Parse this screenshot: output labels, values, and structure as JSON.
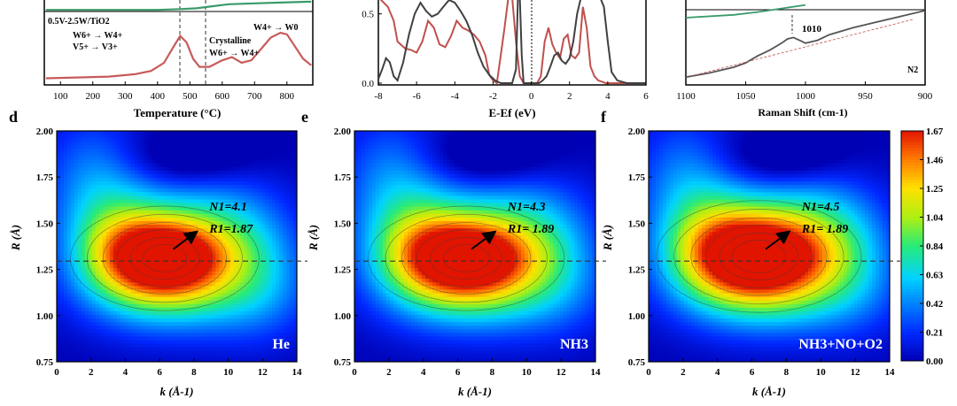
{
  "panels": {
    "d": "d",
    "e": "e",
    "f": "f"
  },
  "chart_data": [
    {
      "id": "tpr-cropped",
      "type": "line",
      "xlabel": "Temperature (°C)",
      "xlim": [
        50,
        880
      ],
      "xticks": [
        100,
        200,
        300,
        400,
        500,
        600,
        700,
        800
      ],
      "sample_label": "0.5V-2.5W/TiO2",
      "annotations": {
        "w6_w4": "W6+ → W4+",
        "v5_v3": "V5+ → V3+",
        "crystalline": "Crystalline",
        "w6_w4_b": "W6+ → W4+",
        "w4_w0": "W4+ → W0"
      },
      "series": [
        {
          "color": "#c85a5a",
          "x": [
            55,
            150,
            250,
            330,
            380,
            420,
            450,
            470,
            490,
            510,
            530,
            560,
            600,
            630,
            660,
            690,
            720,
            750,
            780,
            800,
            820,
            850,
            875
          ],
          "y": [
            0.06,
            0.07,
            0.08,
            0.11,
            0.15,
            0.25,
            0.45,
            0.58,
            0.5,
            0.3,
            0.2,
            0.2,
            0.28,
            0.32,
            0.25,
            0.28,
            0.42,
            0.56,
            0.62,
            0.6,
            0.48,
            0.3,
            0.22
          ]
        },
        {
          "color": "#3a9a6a",
          "x": [
            55,
            400,
            470,
            520,
            560,
            620,
            700,
            780,
            860,
            875
          ],
          "y": [
            0.9,
            0.9,
            0.91,
            0.92,
            0.94,
            0.97,
            0.98,
            0.99,
            1.0,
            1.0
          ]
        }
      ]
    },
    {
      "id": "dos-cropped",
      "type": "line",
      "xlabel": "E-Ef (eV)",
      "xlim": [
        -8,
        6
      ],
      "ylim": [
        0,
        0.6
      ],
      "xticks": [
        -8,
        -6,
        -4,
        -2,
        0,
        2,
        4,
        6
      ],
      "yticks": [
        0.0,
        0.5
      ],
      "series": [
        {
          "color": "#c0504d",
          "x": [
            -8,
            -7.5,
            -7.2,
            -7.0,
            -6.6,
            -6.3,
            -6.0,
            -5.7,
            -5.4,
            -5.1,
            -4.8,
            -4.5,
            -4.2,
            -3.9,
            -3.6,
            -3.3,
            -3.0,
            -2.7,
            -2.4,
            -2.2,
            -2.0,
            -1.8,
            -1.6,
            -1.4,
            -1.2,
            -1.0,
            -0.8,
            -0.6,
            -0.4,
            -0.2,
            0.0,
            0.1,
            0.3,
            0.5,
            0.7,
            0.9,
            1.1,
            1.3,
            1.5,
            1.7,
            1.9,
            2.1,
            2.3,
            2.5,
            2.7,
            2.9,
            3.1,
            3.3,
            3.5,
            3.7,
            3.9,
            4.1,
            4.5,
            5,
            6
          ],
          "y": [
            0.62,
            0.55,
            0.45,
            0.3,
            0.25,
            0.24,
            0.22,
            0.3,
            0.45,
            0.4,
            0.28,
            0.26,
            0.34,
            0.45,
            0.4,
            0.38,
            0.35,
            0.3,
            0.2,
            0.06,
            0.02,
            0.0,
            0.2,
            0.4,
            0.62,
            0.62,
            0.3,
            0.05,
            0.0,
            0.0,
            0.0,
            0.0,
            0.0,
            0.05,
            0.3,
            0.4,
            0.28,
            0.22,
            0.18,
            0.32,
            0.35,
            0.2,
            0.18,
            0.22,
            0.55,
            0.4,
            0.12,
            0.05,
            0.02,
            0.01,
            0.0,
            0.0,
            0.0,
            0.0,
            0.0
          ]
        },
        {
          "color": "#404040",
          "x": [
            -8,
            -7.8,
            -7.6,
            -7.4,
            -7.2,
            -7.0,
            -6.7,
            -6.4,
            -6.1,
            -5.8,
            -5.5,
            -5.2,
            -4.9,
            -4.6,
            -4.3,
            -4.0,
            -3.7,
            -3.4,
            -3.1,
            -2.8,
            -2.5,
            -2.2,
            -1.9,
            -1.6,
            -1.3,
            -1.0,
            -0.8,
            -0.7,
            -0.6,
            -0.5,
            -0.4,
            0.0,
            0.4,
            0.6,
            0.8,
            1.0,
            1.2,
            1.4,
            1.6,
            1.8,
            2.0,
            2.2,
            2.4,
            2.6,
            2.8,
            3.0,
            3.2,
            3.4,
            3.6,
            3.8,
            4.0,
            4.2,
            4.5,
            5,
            6
          ],
          "y": [
            0.03,
            0.1,
            0.18,
            0.15,
            0.05,
            0.02,
            0.15,
            0.35,
            0.5,
            0.58,
            0.52,
            0.48,
            0.5,
            0.55,
            0.6,
            0.58,
            0.52,
            0.45,
            0.35,
            0.22,
            0.12,
            0.06,
            0.02,
            0.0,
            0.0,
            0.0,
            0.1,
            0.62,
            0.62,
            0.2,
            0.0,
            0.0,
            0.0,
            0.02,
            0.05,
            0.12,
            0.2,
            0.22,
            0.16,
            0.14,
            0.18,
            0.3,
            0.5,
            0.62,
            0.62,
            0.62,
            0.62,
            0.62,
            0.62,
            0.55,
            0.3,
            0.08,
            0.02,
            0.0,
            0.0
          ]
        }
      ]
    },
    {
      "id": "raman-cropped",
      "type": "line",
      "xlabel": "Raman Shift (cm-1)",
      "xlim": [
        1100,
        900
      ],
      "xticks": [
        1100,
        1050,
        1000,
        950,
        900
      ],
      "peak_label": "1010",
      "condition_label": "N2",
      "series": [
        {
          "color": "#555555",
          "x": [
            1100,
            1080,
            1060,
            1050,
            1040,
            1030,
            1020,
            1015,
            1010,
            1005,
            1000,
            990,
            980,
            960,
            940,
            920,
            900
          ],
          "y": [
            0.06,
            0.12,
            0.2,
            0.26,
            0.36,
            0.44,
            0.54,
            0.6,
            0.62,
            0.58,
            0.54,
            0.58,
            0.66,
            0.76,
            0.84,
            0.92,
            1.0
          ]
        },
        {
          "color": "#3a9a6a",
          "x": [
            1100,
            1060,
            1040,
            1020,
            1000
          ],
          "y": [
            0.9,
            0.94,
            0.98,
            1.03,
            1.08
          ]
        }
      ]
    },
    {
      "id": "wt-He",
      "type": "heatmap",
      "panel": "d",
      "xlabel": "k (Å-1)",
      "ylabel": "R (Å)",
      "xlim": [
        0,
        14
      ],
      "ylim": [
        0.75,
        2.0
      ],
      "xticks": [
        0,
        2,
        4,
        6,
        8,
        10,
        12,
        14
      ],
      "yticks": [
        0.75,
        1.0,
        1.25,
        1.5,
        1.75,
        2.0
      ],
      "ref_line_R": 1.295,
      "max_intensity": 1.67,
      "peaks": [
        {
          "k": 6.3,
          "R": 1.31,
          "amp": 1.67,
          "sk": 2.7,
          "sR": 0.16
        },
        {
          "k": 3.8,
          "R": 1.42,
          "amp": 0.6,
          "sk": 2.2,
          "sR": 0.22
        },
        {
          "k": 9.2,
          "R": 1.48,
          "amp": 0.45,
          "sk": 2.6,
          "sR": 0.22
        },
        {
          "k": 7.5,
          "R": 1.1,
          "amp": 0.45,
          "sk": 4.0,
          "sR": 0.17
        },
        {
          "k": 2.0,
          "R": 1.75,
          "amp": 0.35,
          "sk": 2.0,
          "sR": 0.25
        },
        {
          "k": 12.0,
          "R": 1.25,
          "amp": 0.3,
          "sk": 2.0,
          "sR": 0.25
        }
      ],
      "annotation": {
        "N": "N1=4.1",
        "R": "R1=1.87"
      },
      "condition": "He"
    },
    {
      "id": "wt-NH3",
      "type": "heatmap",
      "panel": "e",
      "xlabel": "k (Å-1)",
      "ylabel": "R (Å)",
      "xlim": [
        0,
        14
      ],
      "ylim": [
        0.75,
        2.0
      ],
      "xticks": [
        0,
        2,
        4,
        6,
        8,
        10,
        12,
        14
      ],
      "yticks": [
        0.75,
        1.0,
        1.25,
        1.5,
        1.75,
        2.0
      ],
      "ref_line_R": 1.295,
      "max_intensity": 1.67,
      "peaks": [
        {
          "k": 6.5,
          "R": 1.31,
          "amp": 1.67,
          "sk": 2.8,
          "sR": 0.16
        },
        {
          "k": 3.8,
          "R": 1.42,
          "amp": 0.6,
          "sk": 2.2,
          "sR": 0.22
        },
        {
          "k": 9.4,
          "R": 1.48,
          "amp": 0.45,
          "sk": 2.6,
          "sR": 0.22
        },
        {
          "k": 7.5,
          "R": 1.1,
          "amp": 0.45,
          "sk": 4.0,
          "sR": 0.17
        },
        {
          "k": 2.0,
          "R": 1.75,
          "amp": 0.35,
          "sk": 2.0,
          "sR": 0.25
        },
        {
          "k": 12.0,
          "R": 1.3,
          "amp": 0.25,
          "sk": 2.0,
          "sR": 0.25
        }
      ],
      "annotation": {
        "N": "N1=4.3",
        "R": "R1= 1.89"
      },
      "condition": "NH3"
    },
    {
      "id": "wt-NH3-NO-O2",
      "type": "heatmap",
      "panel": "f",
      "xlabel": "k (Å-1)",
      "ylabel": "R (Å)",
      "xlim": [
        0,
        14
      ],
      "ylim": [
        0.75,
        2.0
      ],
      "xticks": [
        0,
        2,
        4,
        6,
        8,
        10,
        12,
        14
      ],
      "yticks": [
        0.75,
        1.0,
        1.25,
        1.5,
        1.75,
        2.0
      ],
      "ref_line_R": 1.295,
      "max_intensity": 1.67,
      "peaks": [
        {
          "k": 6.4,
          "R": 1.32,
          "amp": 1.72,
          "sk": 2.9,
          "sR": 0.17
        },
        {
          "k": 3.8,
          "R": 1.42,
          "amp": 0.6,
          "sk": 2.2,
          "sR": 0.22
        },
        {
          "k": 9.4,
          "R": 1.48,
          "amp": 0.5,
          "sk": 2.6,
          "sR": 0.22
        },
        {
          "k": 7.5,
          "R": 1.1,
          "amp": 0.45,
          "sk": 4.0,
          "sR": 0.17
        },
        {
          "k": 2.0,
          "R": 1.75,
          "amp": 0.35,
          "sk": 2.0,
          "sR": 0.25
        },
        {
          "k": 12.0,
          "R": 1.3,
          "amp": 0.25,
          "sk": 2.0,
          "sR": 0.25
        }
      ],
      "annotation": {
        "N": "N1=4.5",
        "R": "R1= 1.89"
      },
      "condition": "NH3+NO+O2"
    },
    {
      "id": "colorbar",
      "type": "colorbar",
      "ticks": [
        "1.67",
        "1.46",
        "1.25",
        "1.04",
        "0.84",
        "0.63",
        "0.42",
        "0.21",
        "0.00"
      ],
      "vmin": 0.0,
      "vmax": 1.67
    }
  ]
}
